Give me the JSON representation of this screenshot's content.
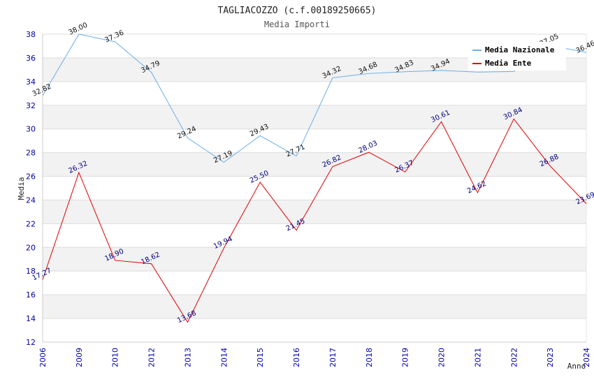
{
  "chart_data": {
    "type": "line",
    "title": "TAGLIACOZZO (c.f.00189250665)",
    "subtitle": "Media Importi",
    "xlabel": "Anno",
    "ylabel": "Media",
    "ylim": [
      12,
      38
    ],
    "yticks": [
      12,
      14,
      16,
      18,
      20,
      22,
      24,
      26,
      28,
      30,
      32,
      34,
      36,
      38
    ],
    "categories": [
      "2006",
      "2009",
      "2010",
      "2012",
      "2013",
      "2014",
      "2015",
      "2016",
      "2017",
      "2018",
      "2019",
      "2020",
      "2021",
      "2022",
      "2023",
      "2024"
    ],
    "grid": true,
    "legend_position": "top-right",
    "series": [
      {
        "name": "Media Nazionale",
        "color": "#6aaee8",
        "values": [
          32.82,
          38.0,
          37.36,
          34.79,
          29.24,
          27.19,
          29.43,
          27.71,
          34.32,
          34.68,
          34.83,
          34.94,
          34.8,
          34.85,
          37.05,
          36.46
        ],
        "labels": {
          "0": "32.82",
          "1": "38.00",
          "2": "37.36",
          "3": "34.79",
          "4": "29.24",
          "5": "27.19",
          "6": "29.43",
          "7": "27.71",
          "8": "34.32",
          "9": "34.68",
          "10": "34.83",
          "11": "34.94",
          "14": "37.05",
          "15": "36.46"
        }
      },
      {
        "name": "Media Ente",
        "color": "#e00000",
        "values": [
          17.27,
          26.32,
          18.9,
          18.62,
          13.68,
          19.94,
          25.5,
          21.45,
          26.82,
          28.03,
          26.37,
          30.61,
          24.62,
          30.84,
          26.88,
          23.69
        ],
        "labels": {
          "0": "17.27",
          "1": "26.32",
          "2": "18.90",
          "3": "18.62",
          "4": "13.68",
          "5": "19.94",
          "6": "25.50",
          "7": "21.45",
          "8": "26.82",
          "9": "28.03",
          "10": "26.37",
          "11": "30.61",
          "12": "24.62",
          "13": "30.84",
          "14": "26.88",
          "15": "23.69"
        }
      }
    ]
  }
}
